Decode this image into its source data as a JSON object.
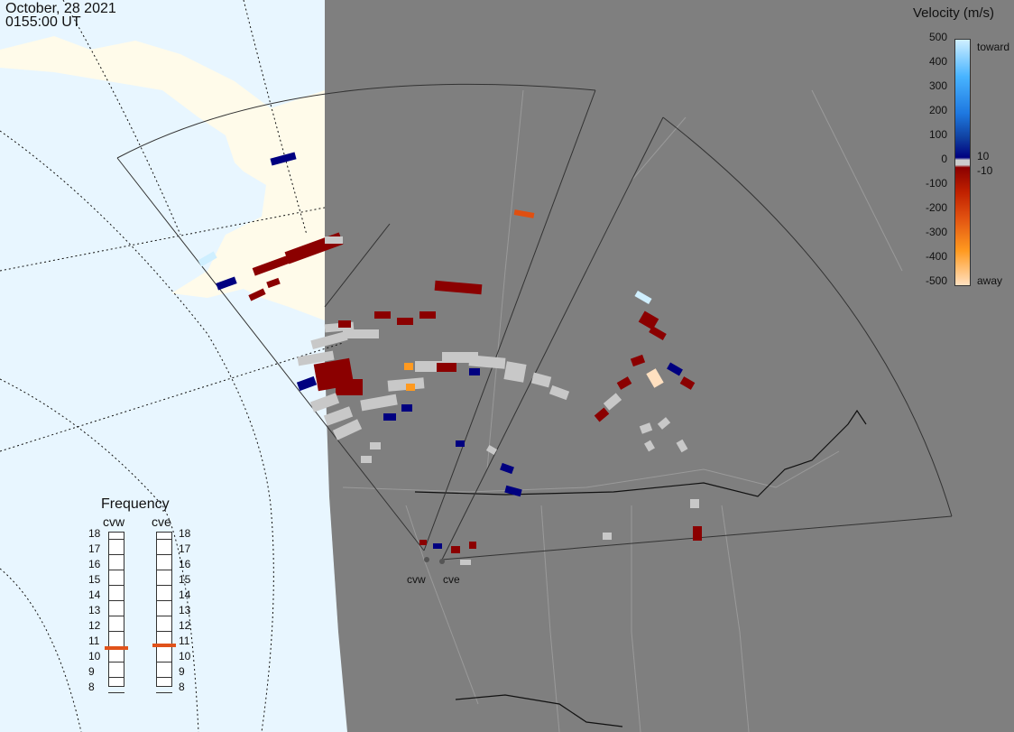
{
  "header": {
    "date": "October, 28 2021",
    "time": "0155:00 UT"
  },
  "colorbar": {
    "title": "Velocity (m/s)",
    "ticks": [
      "500",
      "400",
      "300",
      "200",
      "100",
      "0",
      "-100",
      "-200",
      "-300",
      "-400",
      "-500"
    ],
    "toward_label": "toward",
    "away_label": "away",
    "inner_pos": "10",
    "inner_neg": "-10",
    "colors": {
      "toward_top": "#cfefff",
      "toward_mid": "#1e90ff",
      "toward_low": "#000080",
      "zero": "#cccccc",
      "away_low": "#8b0000",
      "away_mid": "#e04f10",
      "away_high": "#ff9a20",
      "away_top": "#ffe0c0"
    }
  },
  "frequency": {
    "title": "Frequency",
    "radars": [
      "cvw",
      "cve"
    ],
    "levels": [
      "18",
      "17",
      "16",
      "15",
      "14",
      "13",
      "12",
      "11",
      "10",
      "9",
      "8"
    ],
    "selected": {
      "cvw": 10.8,
      "cve": 10.9
    }
  },
  "map": {
    "radar_labels": [
      "cvw",
      "cve"
    ],
    "colors": {
      "ocean": "#e8f6ff",
      "land_day": "#fffbea",
      "night": "#7f7f7f",
      "nodata": "#c8c8c8"
    }
  }
}
